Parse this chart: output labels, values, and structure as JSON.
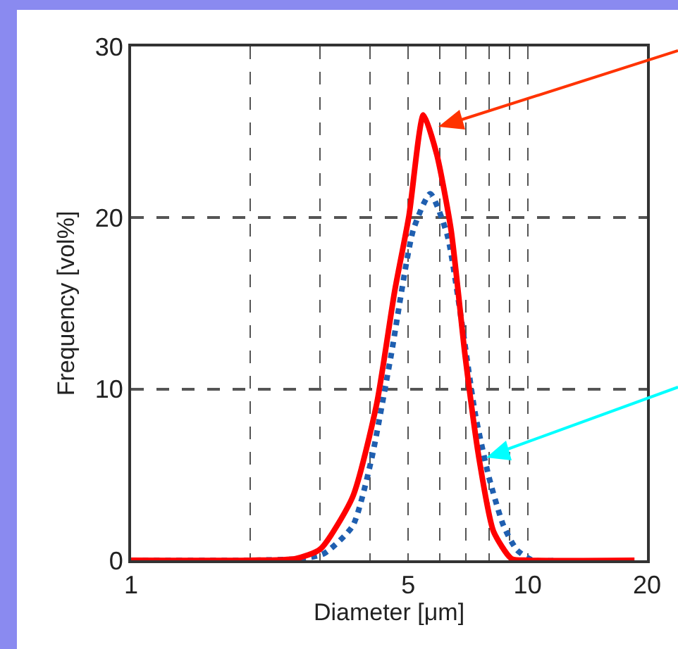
{
  "chart_data": {
    "type": "line",
    "xlabel": "Diameter [μm]",
    "ylabel": "Frequency [vol%]",
    "log": "x",
    "grid": true,
    "marker": "none",
    "xlim": [
      1,
      20
    ],
    "ylim": [
      0,
      30
    ],
    "xticks": [
      1,
      {
        "value": 2,
        "label": null
      },
      {
        "value": 3,
        "label": null
      },
      {
        "value": 4,
        "label": null
      },
      5,
      {
        "value": 6,
        "label": null
      },
      {
        "value": 7,
        "label": null
      },
      {
        "value": 8,
        "label": null
      },
      {
        "value": 9,
        "label": null
      },
      10,
      20
    ],
    "yticks": [
      0,
      10,
      20,
      30
    ],
    "series": [
      {
        "color": "#1f5fb0",
        "line_style": "dotted",
        "x": [
          1,
          2,
          2.7,
          3.07,
          3.62,
          4.03,
          4.52,
          5.15,
          5.68,
          6.27,
          6.8,
          7.37,
          8.0,
          8.7,
          9.4,
          10.3,
          12
        ],
        "values": [
          0,
          0,
          0.1,
          0.4,
          2.0,
          5.8,
          11.9,
          19.3,
          21.4,
          19,
          14.1,
          8.6,
          4.8,
          2.0,
          0.6,
          0,
          0
        ]
      },
      {
        "color": "#ff0000",
        "line_style": "solid",
        "x": [
          1,
          2,
          2.6,
          3.0,
          3.62,
          4.16,
          4.62,
          5.02,
          5.46,
          5.9,
          6.41,
          6.96,
          7.56,
          8.2,
          9.1,
          10,
          18.6
        ],
        "values": [
          0,
          0,
          0.1,
          0.65,
          3.7,
          9.1,
          15.7,
          20.1,
          26,
          23.7,
          19.3,
          11.9,
          5.8,
          1.7,
          0.1,
          0,
          0
        ]
      }
    ]
  }
}
